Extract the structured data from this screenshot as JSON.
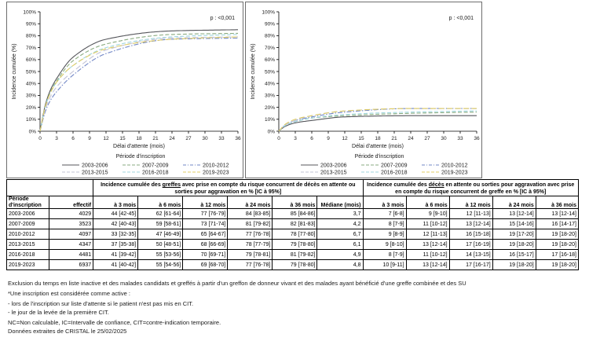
{
  "chart_data": [
    {
      "type": "line",
      "title": "",
      "p_annotation": "p : <0,001",
      "xlabel": "Délai d'attente (mois)",
      "ylabel": "Incidence cumulée (%)",
      "legend_title": "Période d'inscription",
      "legend_position": "bottom",
      "grid": false,
      "x": [
        0,
        3,
        6,
        12,
        24,
        36
      ],
      "xlim": [
        0,
        36
      ],
      "ylim": [
        0,
        100
      ],
      "x_ticks": [
        "0",
        "3",
        "6",
        "9",
        "12",
        "15",
        "18",
        "21",
        "24",
        "27",
        "30",
        "33",
        "36"
      ],
      "y_ticks": [
        "0%",
        "10%",
        "20%",
        "30%",
        "40%",
        "50%",
        "60%",
        "70%",
        "80%",
        "90%",
        "100%"
      ],
      "series": [
        {
          "name": "2003-2006",
          "values": [
            0,
            44,
            62,
            77,
            84,
            85
          ],
          "color": "#55565b",
          "dash": "solid"
        },
        {
          "name": "2007-2009",
          "values": [
            0,
            42,
            59,
            73,
            81,
            82
          ],
          "color": "#8aab80",
          "dash": "dash"
        },
        {
          "name": "2010-2012",
          "values": [
            0,
            33,
            47,
            65,
            77,
            78
          ],
          "color": "#7287c6",
          "dash": "dashdot"
        },
        {
          "name": "2013-2015",
          "values": [
            0,
            37,
            50,
            68,
            78,
            79
          ],
          "color": "#c2c3d6",
          "dash": "longdash"
        },
        {
          "name": "2016-2018",
          "values": [
            0,
            41,
            55,
            70,
            79,
            81
          ],
          "color": "#9fd6de",
          "dash": "dash"
        },
        {
          "name": "2019-2023",
          "values": [
            0,
            41,
            55,
            69,
            77,
            79
          ],
          "color": "#e0cd66",
          "dash": "longdash"
        }
      ]
    },
    {
      "type": "line",
      "title": "",
      "p_annotation": "p : <0,001",
      "xlabel": "Délai d'attente (mois)",
      "ylabel": "Incidence cumulée (%)",
      "legend_title": "Période d'inscription",
      "legend_position": "bottom",
      "grid": false,
      "x": [
        0,
        3,
        6,
        12,
        24,
        36
      ],
      "xlim": [
        0,
        36
      ],
      "ylim": [
        0,
        100
      ],
      "x_ticks": [
        "0",
        "3",
        "6",
        "9",
        "12",
        "15",
        "18",
        "21",
        "24",
        "27",
        "30",
        "33",
        "36"
      ],
      "y_ticks": [
        "0%",
        "10%",
        "20%",
        "30%",
        "40%",
        "50%",
        "60%",
        "70%",
        "80%",
        "90%",
        "100%"
      ],
      "series": [
        {
          "name": "2003-2006",
          "values": [
            0,
            7,
            9,
            12,
            13,
            13
          ],
          "color": "#55565b",
          "dash": "solid"
        },
        {
          "name": "2007-2009",
          "values": [
            0,
            8,
            11,
            13,
            15,
            16
          ],
          "color": "#8aab80",
          "dash": "dash"
        },
        {
          "name": "2010-2012",
          "values": [
            0,
            9,
            12,
            16,
            19,
            19
          ],
          "color": "#7287c6",
          "dash": "dashdot"
        },
        {
          "name": "2013-2015",
          "values": [
            0,
            9,
            13,
            17,
            19,
            19
          ],
          "color": "#c2c3d6",
          "dash": "longdash"
        },
        {
          "name": "2016-2018",
          "values": [
            0,
            8,
            11,
            14,
            16,
            17
          ],
          "color": "#9fd6de",
          "dash": "dash"
        },
        {
          "name": "2019-2023",
          "values": [
            0,
            10,
            13,
            17,
            19,
            19
          ],
          "color": "#e0cd66",
          "dash": "longdash"
        }
      ]
    }
  ],
  "table": {
    "header_period": "Période d'inscription",
    "header_effectif": "effectif",
    "header_mediane": "Médiane (mois)",
    "group1": {
      "pre": "Incidence cumulée des ",
      "underline": "greffes",
      "post": " avec prise en compte du risque concurrent de décès en attente ou sorties pour aggravation en % [IC à 95%]"
    },
    "group2": {
      "pre": "Incidence cumulée des ",
      "underline": "décès",
      "post": " en attente ou sorties pour aggravation avec prise en compte du risque concurrent de greffe en % [IC à 95%]"
    },
    "time_cols": [
      "à 3 mois",
      "à 6 mois",
      "à 12 mois",
      "à 24 mois",
      "à 36 mois"
    ],
    "rows": [
      {
        "periode": "2003-2006",
        "effectif": "4029",
        "greffe": [
          "44 [42-45]",
          "62 [61-64]",
          "77 [76-79]",
          "84 [83-85]",
          "85 [84-86]"
        ],
        "mediane": "3,7",
        "deces": [
          "7 [6-8]",
          "9 [9-10]",
          "12 [11-13]",
          "13 [12-14]",
          "13 [12-14]"
        ]
      },
      {
        "periode": "2007-2009",
        "effectif": "3523",
        "greffe": [
          "42 [40-43]",
          "59 [58-61]",
          "73 [71-74]",
          "81 [79-82]",
          "82 [81-83]"
        ],
        "mediane": "4,2",
        "deces": [
          "8 [7-9]",
          "11 [10-12]",
          "13 [12-14]",
          "15 [14-16]",
          "16 [14-17]"
        ]
      },
      {
        "periode": "2010-2012",
        "effectif": "4097",
        "greffe": [
          "33 [32-35]",
          "47 [46-49]",
          "65 [64-67]",
          "77 [76-78]",
          "78 [77-80]"
        ],
        "mediane": "6,7",
        "deces": [
          "9 [8-9]",
          "12 [11-13]",
          "16 [15-18]",
          "19 [17-20]",
          "19 [18-20]"
        ]
      },
      {
        "periode": "2013-2015",
        "effectif": "4347",
        "greffe": [
          "37 [35-38]",
          "50 [48-51]",
          "68 [66-69]",
          "78 [77-79]",
          "79 [78-80]"
        ],
        "mediane": "6,1",
        "deces": [
          "9 [8-10]",
          "13 [12-14]",
          "17 [16-19]",
          "19 [18-20]",
          "19 [18-20]"
        ]
      },
      {
        "periode": "2016-2018",
        "effectif": "4481",
        "greffe": [
          "41 [39-42]",
          "55 [53-56]",
          "70 [69-71]",
          "79 [78-81]",
          "81 [79-82]"
        ],
        "mediane": "4,9",
        "deces": [
          "8 [7-9]",
          "11 [10-12]",
          "14 [13-15]",
          "16 [15-17]",
          "17 [16-18]"
        ]
      },
      {
        "periode": "2019-2023",
        "effectif": "6937",
        "greffe": [
          "41 [40-42]",
          "55 [54-56]",
          "69 [68-70]",
          "77 [76-78]",
          "79 [78-80]"
        ],
        "mediane": "4,8",
        "deces": [
          "10 [9-11]",
          "13 [12-14]",
          "17 [16-17]",
          "19 [18-20]",
          "19 [18-20]"
        ]
      }
    ]
  },
  "footnotes": [
    "Exclusion du temps en liste inactive et des malades candidats et greffés à partir d'un greffon de donneur vivant et des malades ayant bénéficié d'une greffe combinée et des SU",
    "*Une inscription est considérée comme active :",
    "- lors de l'inscription sur liste d'attente si le patient n'est pas mis en CIT.",
    "- le jour de la levée de la première CIT.",
    "NC=Non calculable, IC=Intervalle de confiance, CIT=contre-indication temporaire.",
    "Données extraites de CRISTAL le 25/02/2025"
  ]
}
